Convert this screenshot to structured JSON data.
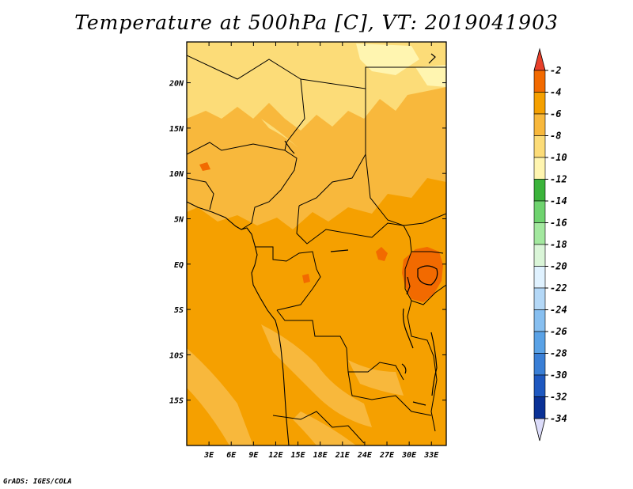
{
  "title": "Temperature at 500hPa [C], VT: 2019041903",
  "credit": "GrADS: IGES/COLA",
  "map": {
    "lat_labels": [
      "20N",
      "15N",
      "10N",
      "5N",
      "EQ",
      "5S",
      "10S",
      "15S"
    ],
    "lat_values": [
      20,
      15,
      10,
      5,
      0,
      -5,
      -10,
      -15
    ],
    "lon_labels": [
      "3E",
      "6E",
      "9E",
      "12E",
      "15E",
      "18E",
      "21E",
      "24E",
      "27E",
      "30E",
      "33E"
    ],
    "lon_values": [
      3,
      6,
      9,
      12,
      15,
      18,
      21,
      24,
      27,
      30,
      33
    ],
    "lon_range": [
      0,
      35
    ],
    "lat_range": [
      -20,
      24.5
    ],
    "dominant_band": "-4 to -6 C",
    "warm_spot": "East Africa near 30E, 0-2S"
  },
  "colorbar": {
    "labels": [
      "-2",
      "-4",
      "-6",
      "-8",
      "-10",
      "-12",
      "-14",
      "-16",
      "-18",
      "-20",
      "-22",
      "-24",
      "-26",
      "-28",
      "-30",
      "-32",
      "-34"
    ],
    "colors": [
      "#e8402a",
      "#f26a00",
      "#f5a000",
      "#f8b83c",
      "#fcdc78",
      "#fff5b0",
      "#3bb33b",
      "#6fd36f",
      "#a3e89f",
      "#daf5d8",
      "#e0f2ff",
      "#b4d8f7",
      "#87bff0",
      "#5aa2e6",
      "#3a7fd6",
      "#1e58c0",
      "#0a3196",
      "#061569",
      "#dcdcfa"
    ],
    "range": [
      -34,
      -2
    ]
  }
}
